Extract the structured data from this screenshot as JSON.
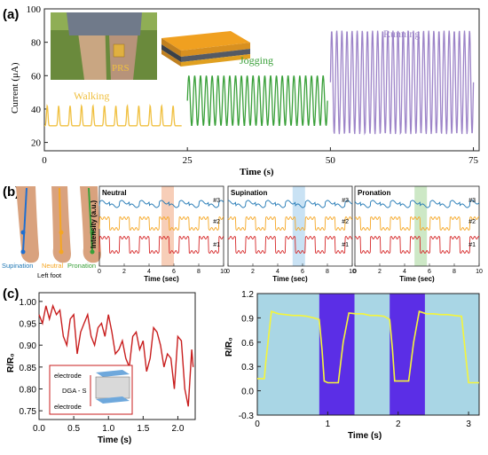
{
  "panel_labels": {
    "a": "(a)",
    "b": "(b)",
    "c": "(c)"
  },
  "colors": {
    "walking": "#f0c040",
    "jogging": "#3aa03a",
    "running": "#9d84c8",
    "blue": "#1f77b4",
    "orange": "#f5a623",
    "red": "#d62728",
    "c_left": "#c81e1e",
    "c_right": "#f5f53a",
    "c_bg_light": "#a9d6e5",
    "c_bg_dark": "#5b2ee6"
  },
  "panel_a": {
    "ylabel": "Current (μA)",
    "xlabel": "Time (s)",
    "annotations": {
      "prs": "PRS",
      "walking": "Walking",
      "jogging": "Jogging",
      "running": "Running"
    },
    "photo_icon": "knee-with-sensor-photo",
    "device_icon": "layered-sensor-icon"
  },
  "panel_b": {
    "foot_caption": "Left foot",
    "foot_legend": [
      "Supination",
      "Neutral",
      "Pronation"
    ],
    "ylabel": "Intensity (a.u.)",
    "xlabel": "Time (sec)",
    "subplots": [
      {
        "title": "Neutral",
        "highlight": "#f6c9b0"
      },
      {
        "title": "Supination",
        "highlight": "#c3dff3"
      },
      {
        "title": "Pronation",
        "highlight": "#c8e6c0"
      }
    ],
    "trace_labels": [
      "#3",
      "#2",
      "#1"
    ],
    "xticks": [
      "0",
      "2",
      "4",
      "6",
      "8",
      "10"
    ]
  },
  "panel_c_inset": {
    "top": "electrode",
    "middle": "DGA - S",
    "bottom": "electrode"
  },
  "chart_data": [
    {
      "type": "line",
      "id": "a",
      "xlabel": "Time (s)",
      "ylabel": "Current (μA)",
      "xlim": [
        0,
        76
      ],
      "ylim": [
        15,
        100
      ],
      "xticks": [
        0,
        25,
        50,
        75
      ],
      "yticks": [
        20,
        40,
        60,
        80,
        100
      ],
      "series": [
        {
          "name": "Walking",
          "x_range": [
            0,
            24
          ],
          "baseline": 30,
          "peak": 42,
          "cycles": 12
        },
        {
          "name": "Jogging",
          "x_range": [
            25,
            49.5
          ],
          "baseline": 30,
          "peak": 60,
          "cycles": 24
        },
        {
          "name": "Running",
          "x_range": [
            50,
            75
          ],
          "baseline": 25,
          "peak": 87,
          "cycles": 28
        }
      ]
    },
    {
      "type": "line",
      "id": "b",
      "xlabel": "Time (sec)",
      "ylabel": "Intensity (a.u.)",
      "xlim": [
        0,
        10
      ],
      "xticks": [
        0,
        2,
        4,
        6,
        8,
        10
      ],
      "subplots": [
        "Neutral",
        "Supination",
        "Pronation"
      ],
      "series": [
        {
          "name": "#3",
          "offset": 2.0
        },
        {
          "name": "#2",
          "offset": 1.0
        },
        {
          "name": "#1",
          "offset": 0.0
        }
      ]
    },
    {
      "type": "line",
      "id": "c_left",
      "xlabel": "Time (s)",
      "ylabel": "R/R₀",
      "xlim": [
        0,
        2.25
      ],
      "ylim": [
        0.73,
        1.02
      ],
      "xticks": [
        "0.0",
        "0.5",
        "1.0",
        "1.5",
        "2.0"
      ],
      "yticks": [
        "0.75",
        "0.80",
        "0.85",
        "0.90",
        "0.95",
        "1.00"
      ],
      "x": [
        0.0,
        0.05,
        0.1,
        0.15,
        0.2,
        0.25,
        0.3,
        0.35,
        0.4,
        0.45,
        0.5,
        0.55,
        0.6,
        0.65,
        0.7,
        0.75,
        0.8,
        0.85,
        0.9,
        0.95,
        1.0,
        1.05,
        1.1,
        1.15,
        1.2,
        1.25,
        1.3,
        1.35,
        1.4,
        1.45,
        1.5,
        1.55,
        1.6,
        1.65,
        1.7,
        1.75,
        1.8,
        1.85,
        1.9,
        1.95,
        2.0,
        2.05,
        2.1,
        2.15,
        2.2,
        2.22
      ],
      "y": [
        0.97,
        0.95,
        0.99,
        0.96,
        0.99,
        0.97,
        0.98,
        0.92,
        0.9,
        0.96,
        0.97,
        0.88,
        0.93,
        0.95,
        0.97,
        0.92,
        0.9,
        0.94,
        0.95,
        0.92,
        0.97,
        0.93,
        0.88,
        0.89,
        0.91,
        0.87,
        0.85,
        0.92,
        0.93,
        0.89,
        0.91,
        0.84,
        0.87,
        0.94,
        0.93,
        0.9,
        0.85,
        0.88,
        0.87,
        0.8,
        0.92,
        0.91,
        0.8,
        0.76,
        0.89,
        0.85
      ]
    },
    {
      "type": "line",
      "id": "c_right",
      "xlabel": "Time (s)",
      "ylabel": "R/R₀",
      "xlim": [
        0,
        3.15
      ],
      "ylim": [
        -0.3,
        1.2
      ],
      "xticks": [
        "0",
        "1",
        "2",
        "3"
      ],
      "yticks": [
        "-0.3",
        "0.0",
        "0.3",
        "0.6",
        "0.9",
        "1.2"
      ],
      "x": [
        0.0,
        0.05,
        0.1,
        0.12,
        0.2,
        0.3,
        0.4,
        0.5,
        0.6,
        0.7,
        0.8,
        0.88,
        0.92,
        0.95,
        1.0,
        1.1,
        1.15,
        1.22,
        1.3,
        1.4,
        1.5,
        1.6,
        1.7,
        1.8,
        1.88,
        1.92,
        1.95,
        2.0,
        2.1,
        2.15,
        2.22,
        2.3,
        2.4,
        2.5,
        2.6,
        2.7,
        2.8,
        2.9,
        3.0,
        3.15
      ],
      "y": [
        0.15,
        0.15,
        0.15,
        0.35,
        0.98,
        0.95,
        0.94,
        0.93,
        0.93,
        0.92,
        0.9,
        0.88,
        0.5,
        0.12,
        0.1,
        0.1,
        0.1,
        0.6,
        0.96,
        0.95,
        0.95,
        0.93,
        0.93,
        0.92,
        0.88,
        0.5,
        0.12,
        0.12,
        0.12,
        0.12,
        0.6,
        0.98,
        0.95,
        0.95,
        0.94,
        0.94,
        0.93,
        0.92,
        0.1,
        0.1
      ],
      "shaded_regions": [
        [
          0.88,
          1.38
        ],
        [
          1.88,
          2.38
        ]
      ]
    }
  ]
}
